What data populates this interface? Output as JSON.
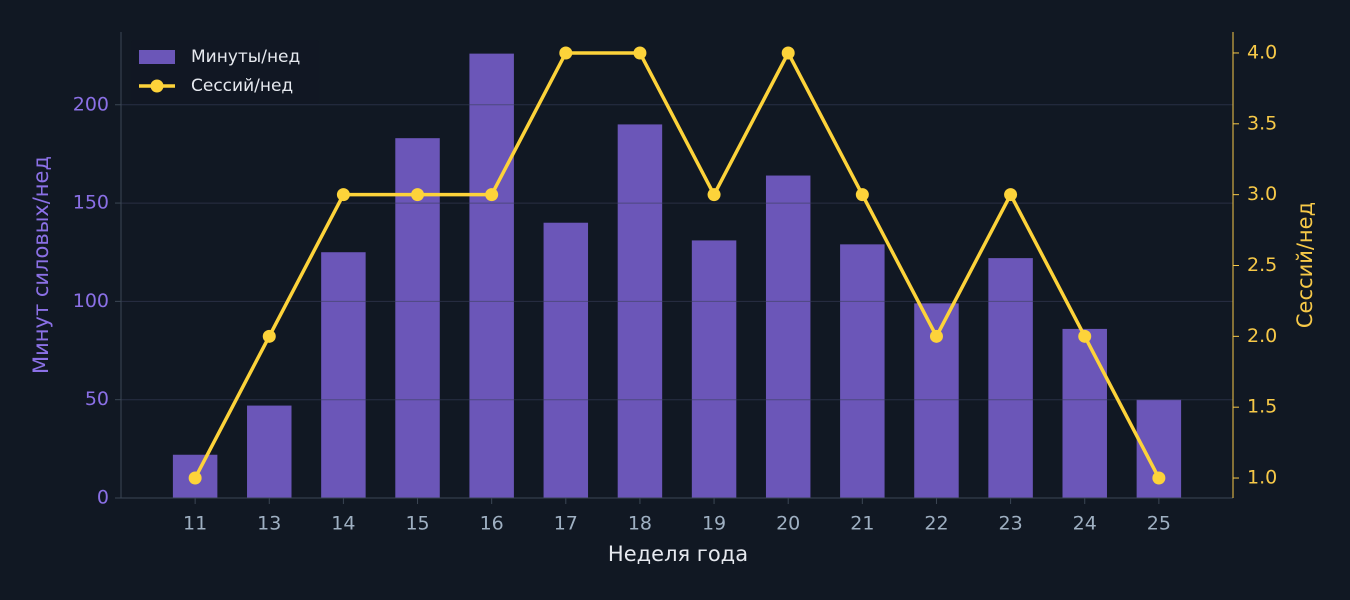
{
  "chart_data": {
    "type": "bar-line",
    "categories": [
      "11",
      "13",
      "14",
      "15",
      "16",
      "17",
      "18",
      "19",
      "20",
      "21",
      "22",
      "23",
      "24",
      "25"
    ],
    "x_label": "Неделя года",
    "y_label": "Минут силовых/нед",
    "y2_label": "Сессий/нед",
    "series": [
      {
        "name": "Минуты/нед",
        "type": "bar",
        "color": "#6b56b8",
        "values": [
          22,
          47,
          125,
          183,
          226,
          140,
          190,
          131,
          164,
          129,
          99,
          122,
          86,
          50
        ]
      },
      {
        "name": "Сессий/нед",
        "type": "line",
        "axis": "y2",
        "color": "#fdd33a",
        "values": [
          1,
          2,
          3,
          3,
          3,
          4,
          4,
          3,
          4,
          3,
          2,
          3,
          2,
          1
        ]
      }
    ],
    "ylim": [
      0,
      237
    ],
    "yticks": [
      0,
      50,
      100,
      150,
      200
    ],
    "y2lim": [
      0.859,
      4.148
    ],
    "y2ticks": [
      {
        "value": 1,
        "label": "1.0"
      },
      {
        "value": 1.5,
        "label": "1.5"
      },
      {
        "value": 2,
        "label": "2.0"
      },
      {
        "value": 2.5,
        "label": "2.5"
      },
      {
        "value": 3,
        "label": "3.0"
      },
      {
        "value": 3.5,
        "label": "3.5"
      },
      {
        "value": 4,
        "label": "4.0"
      }
    ],
    "grid": true,
    "legend": "upper left",
    "y_color": "#8b70e6",
    "y2_color": "#f7c948"
  }
}
